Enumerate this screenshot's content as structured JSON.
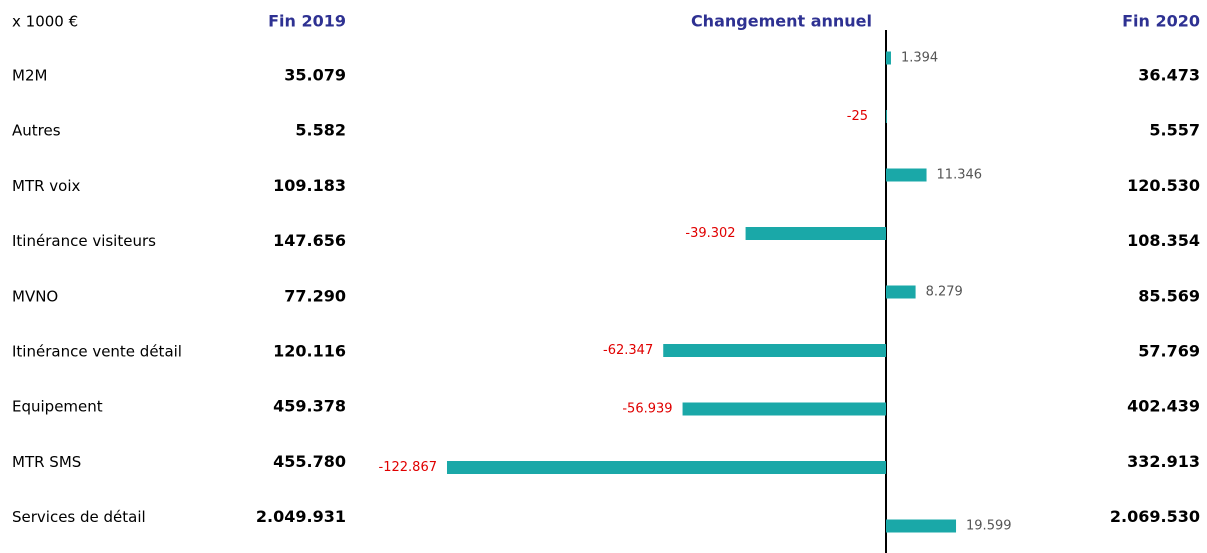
{
  "chart_data": {
    "type": "bar",
    "orientation": "horizontal",
    "unit_label": "x 1000 €",
    "categories": [
      "M2M",
      "Autres",
      "MTR voix",
      "Itinérance visiteurs",
      "MVNO",
      "Itinérance vente détail",
      "Equipement",
      "MTR SMS",
      "Services de détail"
    ],
    "start_column": {
      "name": "Fin 2019",
      "labels": [
        "35.079",
        "5.582",
        "109.183",
        "147.656",
        "77.290",
        "120.116",
        "459.378",
        "455.780",
        "2.049.931"
      ]
    },
    "end_column": {
      "name": "Fin 2020",
      "labels": [
        "36.473",
        "5.557",
        "120.530",
        "108.354",
        "85.569",
        "57.769",
        "402.439",
        "332.913",
        "2.069.530"
      ]
    },
    "series": [
      {
        "name": "Changement annuel",
        "color": "#1aa8a8",
        "values": [
          1394,
          -25,
          11346,
          -39302,
          8279,
          -62347,
          -56939,
          -122867,
          19599
        ],
        "value_labels": [
          "1.394",
          "-25",
          "11.346",
          "-39.302",
          "8.279",
          "-62.347",
          "-56.939",
          "-122.867",
          "19.599"
        ]
      }
    ],
    "xlim": [
      -130000,
      30000
    ],
    "positive_label_color": "#555555",
    "negative_label_color": "#e00000"
  }
}
